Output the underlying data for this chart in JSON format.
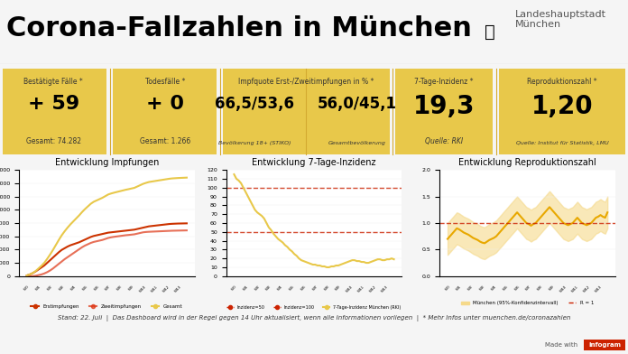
{
  "title": "Corona-Fallzahlen in München",
  "title_fontsize": 28,
  "bg_color": "#ffffff",
  "header_bg": "#f0f0f0",
  "stats_bg": "#e8c84a",
  "stats_bg2": "#d4b82a",
  "footer_bg": "#e8c84a",
  "logo_text": "Landeshauptstadt\nMünchen",
  "stats": [
    {
      "label": "Bestätigte Fälle *",
      "value": "+ 59",
      "sub": "Gesamt: 74.282"
    },
    {
      "label": "Todesfälle *",
      "value": "+ 0",
      "sub": "Gesamt: 1.266"
    },
    {
      "label": "Impfquote Erst-/Zweitimpfungen in % *",
      "value1": "66,5/53,6",
      "value2": "56,0/45,1",
      "sub1": "Bevölkerung 18+ (STIKO)",
      "sub2": "Gesamtbevölkerung"
    },
    {
      "label": "7-Tage-Inzidenz *",
      "value": "19,3",
      "sub": "Quelle: RKI"
    },
    {
      "label": "Reproduktionszahl *",
      "value": "1,20",
      "sub": "Quelle: Institut für Statistik, LMU"
    }
  ],
  "footer_text": "Stand: 22. Juli  |  Das Dashboard wird in der Regel gegen 14 Uhr aktualisiert, wenn alle Informationen vorliegen  |  * Mehr Infos unter muenchen.de/coronazahlen",
  "chart1_title": "Entwicklung Impfungen",
  "chart2_title": "Entwicklung 7-Tage-Inzidenz",
  "chart3_title": "Entwicklung Reproduktionszahl",
  "impf_x": [
    0,
    1,
    2,
    3,
    4,
    5,
    6,
    7,
    8,
    9,
    10,
    11,
    12,
    13,
    14,
    15,
    16,
    17,
    18,
    19,
    20,
    21,
    22,
    23,
    24,
    25,
    26,
    27,
    28,
    29,
    30,
    31,
    32,
    33,
    34,
    35,
    36,
    37,
    38,
    39,
    40,
    41,
    42,
    43,
    44,
    45,
    46,
    47,
    48,
    49,
    50,
    51,
    52,
    53,
    54,
    55
  ],
  "erst": [
    10000,
    25000,
    45000,
    70000,
    100000,
    130000,
    160000,
    200000,
    240000,
    280000,
    320000,
    360000,
    395000,
    420000,
    445000,
    465000,
    480000,
    495000,
    510000,
    530000,
    550000,
    570000,
    590000,
    605000,
    615000,
    625000,
    635000,
    645000,
    655000,
    660000,
    665000,
    670000,
    675000,
    680000,
    685000,
    690000,
    695000,
    700000,
    710000,
    720000,
    730000,
    740000,
    750000,
    755000,
    760000,
    765000,
    770000,
    775000,
    780000,
    785000,
    788000,
    790000,
    792000,
    793000,
    794000,
    795000
  ],
  "zweit": [
    0,
    0,
    0,
    5000,
    15000,
    25000,
    40000,
    60000,
    85000,
    115000,
    150000,
    185000,
    220000,
    255000,
    285000,
    315000,
    345000,
    375000,
    405000,
    435000,
    460000,
    480000,
    500000,
    515000,
    525000,
    535000,
    545000,
    560000,
    575000,
    585000,
    592000,
    598000,
    604000,
    610000,
    616000,
    620000,
    625000,
    630000,
    640000,
    650000,
    660000,
    665000,
    668000,
    670000,
    672000,
    674000,
    676000,
    678000,
    680000,
    682000,
    684000,
    685000,
    686000,
    687000,
    688000,
    689000
  ],
  "gesamt": [
    10000,
    25000,
    45000,
    75000,
    115000,
    155000,
    200000,
    260000,
    325000,
    395000,
    470000,
    545000,
    615000,
    675000,
    730000,
    780000,
    825000,
    870000,
    915000,
    965000,
    1010000,
    1050000,
    1090000,
    1120000,
    1140000,
    1160000,
    1180000,
    1205000,
    1230000,
    1245000,
    1257000,
    1268000,
    1279000,
    1290000,
    1301000,
    1310000,
    1320000,
    1330000,
    1350000,
    1370000,
    1390000,
    1405000,
    1418000,
    1425000,
    1432000,
    1439000,
    1446000,
    1453000,
    1460000,
    1467000,
    1472000,
    1475000,
    1478000,
    1480000,
    1482000,
    1484000
  ],
  "inzidenz_x": [
    0,
    1,
    2,
    3,
    4,
    5,
    6,
    7,
    8,
    9,
    10,
    11,
    12,
    13,
    14,
    15,
    16,
    17,
    18,
    19,
    20,
    21,
    22,
    23,
    24,
    25,
    26,
    27,
    28,
    29,
    30,
    31,
    32,
    33,
    34,
    35,
    36,
    37,
    38,
    39,
    40,
    41,
    42,
    43,
    44,
    45,
    46,
    47,
    48,
    49,
    50,
    51,
    52,
    53,
    54,
    55,
    56,
    57,
    58,
    59,
    60,
    61,
    62,
    63,
    64,
    65,
    66,
    67,
    68,
    69
  ],
  "inzidenz_vals": [
    115,
    110,
    108,
    105,
    100,
    95,
    90,
    85,
    80,
    75,
    72,
    70,
    68,
    65,
    60,
    55,
    52,
    48,
    45,
    42,
    40,
    38,
    35,
    33,
    30,
    28,
    25,
    23,
    20,
    18,
    17,
    16,
    15,
    14,
    13,
    13,
    12,
    12,
    11,
    11,
    10,
    10,
    11,
    11,
    12,
    12,
    13,
    14,
    15,
    16,
    17,
    18,
    18,
    17,
    17,
    16,
    16,
    15,
    15,
    16,
    17,
    18,
    19,
    19,
    18,
    18,
    19,
    19,
    20,
    19
  ],
  "repr_x": [
    0,
    1,
    2,
    3,
    4,
    5,
    6,
    7,
    8,
    9,
    10,
    11,
    12,
    13,
    14,
    15,
    16,
    17,
    18,
    19,
    20,
    21,
    22,
    23,
    24,
    25,
    26,
    27,
    28,
    29,
    30,
    31,
    32,
    33,
    34,
    35,
    36,
    37,
    38,
    39,
    40,
    41,
    42,
    43,
    44,
    45,
    46,
    47,
    48,
    49,
    50,
    51,
    52,
    53,
    54,
    55,
    56,
    57,
    58,
    59,
    60,
    61,
    62,
    63,
    64,
    65,
    66,
    67,
    68,
    69
  ],
  "repr_vals": [
    0.7,
    0.75,
    0.8,
    0.85,
    0.9,
    0.88,
    0.85,
    0.82,
    0.8,
    0.78,
    0.75,
    0.72,
    0.7,
    0.68,
    0.65,
    0.63,
    0.62,
    0.65,
    0.68,
    0.7,
    0.72,
    0.75,
    0.8,
    0.85,
    0.9,
    0.95,
    1.0,
    1.05,
    1.1,
    1.15,
    1.2,
    1.15,
    1.1,
    1.05,
    1.0,
    0.98,
    0.95,
    0.98,
    1.0,
    1.05,
    1.1,
    1.15,
    1.2,
    1.25,
    1.3,
    1.25,
    1.2,
    1.15,
    1.1,
    1.05,
    1.0,
    0.98,
    0.96,
    0.98,
    1.0,
    1.05,
    1.1,
    1.05,
    1.0,
    0.98,
    0.96,
    0.98,
    1.0,
    1.05,
    1.1,
    1.12,
    1.15,
    1.12,
    1.1,
    1.2
  ],
  "repr_upper": [
    1.0,
    1.05,
    1.1,
    1.15,
    1.2,
    1.18,
    1.15,
    1.12,
    1.1,
    1.08,
    1.05,
    1.02,
    1.0,
    0.98,
    0.95,
    0.93,
    0.92,
    0.95,
    0.98,
    1.0,
    1.02,
    1.05,
    1.1,
    1.15,
    1.2,
    1.25,
    1.3,
    1.35,
    1.4,
    1.45,
    1.5,
    1.45,
    1.4,
    1.35,
    1.3,
    1.28,
    1.25,
    1.28,
    1.3,
    1.35,
    1.4,
    1.45,
    1.5,
    1.55,
    1.6,
    1.55,
    1.5,
    1.45,
    1.4,
    1.35,
    1.3,
    1.28,
    1.26,
    1.28,
    1.3,
    1.35,
    1.4,
    1.35,
    1.3,
    1.28,
    1.26,
    1.28,
    1.3,
    1.35,
    1.4,
    1.42,
    1.45,
    1.42,
    1.4,
    1.5
  ],
  "repr_lower": [
    0.4,
    0.45,
    0.5,
    0.55,
    0.6,
    0.58,
    0.55,
    0.52,
    0.5,
    0.48,
    0.45,
    0.42,
    0.4,
    0.38,
    0.35,
    0.33,
    0.32,
    0.35,
    0.38,
    0.4,
    0.42,
    0.45,
    0.5,
    0.55,
    0.6,
    0.65,
    0.7,
    0.75,
    0.8,
    0.85,
    0.9,
    0.85,
    0.8,
    0.75,
    0.7,
    0.68,
    0.65,
    0.68,
    0.7,
    0.75,
    0.8,
    0.85,
    0.9,
    0.95,
    1.0,
    0.95,
    0.9,
    0.85,
    0.8,
    0.75,
    0.7,
    0.68,
    0.66,
    0.68,
    0.7,
    0.75,
    0.8,
    0.75,
    0.7,
    0.68,
    0.66,
    0.68,
    0.7,
    0.75,
    0.8,
    0.82,
    0.85,
    0.82,
    0.8,
    0.9
  ],
  "color_erst": "#cc3300",
  "color_zweit": "#cc2200",
  "color_gesamt": "#e8c84a",
  "color_inzidenz50": "#cc2200",
  "color_inzidenz100": "#cc2200",
  "color_inzidenz_line": "#e8c84a",
  "color_repr_line": "#e8a800",
  "color_repr_fill": "#f5d98a",
  "color_repr_ref": "#cc2200"
}
